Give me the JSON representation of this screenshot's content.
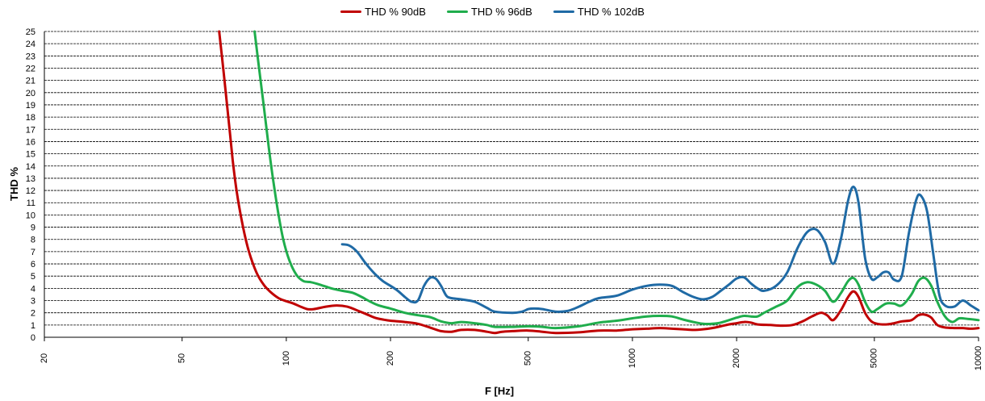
{
  "chart_data": {
    "type": "line",
    "xlabel": "F [Hz]",
    "ylabel": "THD %",
    "xscale": "log",
    "xlim": [
      20,
      10000
    ],
    "ylim": [
      0,
      25
    ],
    "grid": true,
    "legend_position": "top-center",
    "x_ticks": [
      {
        "value": 20,
        "label": "20"
      },
      {
        "value": 50,
        "label": "50"
      },
      {
        "value": 100,
        "label": "100"
      },
      {
        "value": 200,
        "label": "200"
      },
      {
        "value": 500,
        "label": "500"
      },
      {
        "value": 1000,
        "label": "1000"
      },
      {
        "value": 2000,
        "label": "2000"
      },
      {
        "value": 5000,
        "label": "5000"
      },
      {
        "value": 10000,
        "label": "10000"
      }
    ],
    "y_ticks": [
      0,
      1,
      2,
      3,
      4,
      5,
      6,
      7,
      8,
      9,
      10,
      11,
      12,
      13,
      14,
      15,
      16,
      17,
      18,
      19,
      20,
      21,
      22,
      23,
      24,
      25
    ],
    "series": [
      {
        "name": "THD % 90dB",
        "color": "#c00000",
        "points": [
          [
            64,
            25
          ],
          [
            66,
            21.5
          ],
          [
            68,
            18
          ],
          [
            70,
            14.5
          ],
          [
            72,
            11.8
          ],
          [
            75,
            9
          ],
          [
            78,
            7
          ],
          [
            82,
            5.3
          ],
          [
            86,
            4.3
          ],
          [
            90,
            3.7
          ],
          [
            95,
            3.2
          ],
          [
            100,
            2.95
          ],
          [
            105,
            2.75
          ],
          [
            110,
            2.5
          ],
          [
            115,
            2.3
          ],
          [
            120,
            2.3
          ],
          [
            130,
            2.5
          ],
          [
            140,
            2.6
          ],
          [
            150,
            2.5
          ],
          [
            160,
            2.2
          ],
          [
            170,
            1.9
          ],
          [
            180,
            1.6
          ],
          [
            190,
            1.45
          ],
          [
            200,
            1.35
          ],
          [
            220,
            1.25
          ],
          [
            240,
            1.1
          ],
          [
            260,
            0.8
          ],
          [
            280,
            0.5
          ],
          [
            300,
            0.45
          ],
          [
            320,
            0.6
          ],
          [
            350,
            0.6
          ],
          [
            380,
            0.45
          ],
          [
            400,
            0.35
          ],
          [
            420,
            0.45
          ],
          [
            450,
            0.5
          ],
          [
            500,
            0.55
          ],
          [
            550,
            0.45
          ],
          [
            600,
            0.35
          ],
          [
            700,
            0.4
          ],
          [
            800,
            0.55
          ],
          [
            900,
            0.55
          ],
          [
            1000,
            0.65
          ],
          [
            1100,
            0.7
          ],
          [
            1200,
            0.75
          ],
          [
            1300,
            0.7
          ],
          [
            1400,
            0.65
          ],
          [
            1500,
            0.6
          ],
          [
            1600,
            0.65
          ],
          [
            1700,
            0.75
          ],
          [
            1800,
            0.9
          ],
          [
            1900,
            1.05
          ],
          [
            2000,
            1.15
          ],
          [
            2100,
            1.25
          ],
          [
            2200,
            1.2
          ],
          [
            2300,
            1.05
          ],
          [
            2500,
            1.0
          ],
          [
            2700,
            0.95
          ],
          [
            2900,
            1.0
          ],
          [
            3100,
            1.3
          ],
          [
            3300,
            1.7
          ],
          [
            3500,
            2.0
          ],
          [
            3650,
            1.8
          ],
          [
            3800,
            1.4
          ],
          [
            4000,
            2.2
          ],
          [
            4200,
            3.3
          ],
          [
            4350,
            3.75
          ],
          [
            4500,
            3.3
          ],
          [
            4700,
            2.0
          ],
          [
            4900,
            1.3
          ],
          [
            5100,
            1.1
          ],
          [
            5400,
            1.05
          ],
          [
            5700,
            1.15
          ],
          [
            6000,
            1.3
          ],
          [
            6400,
            1.4
          ],
          [
            6700,
            1.8
          ],
          [
            7000,
            1.85
          ],
          [
            7300,
            1.6
          ],
          [
            7600,
            1.0
          ],
          [
            8000,
            0.8
          ],
          [
            8500,
            0.75
          ],
          [
            9000,
            0.75
          ],
          [
            9500,
            0.7
          ],
          [
            10000,
            0.75
          ]
        ]
      },
      {
        "name": "THD % 96dB",
        "color": "#1fad4c",
        "points": [
          [
            81,
            25
          ],
          [
            83,
            22.5
          ],
          [
            86,
            19
          ],
          [
            89,
            15.5
          ],
          [
            92,
            12.5
          ],
          [
            95,
            10
          ],
          [
            98,
            8
          ],
          [
            102,
            6.3
          ],
          [
            107,
            5.1
          ],
          [
            112,
            4.6
          ],
          [
            118,
            4.5
          ],
          [
            125,
            4.3
          ],
          [
            135,
            4.0
          ],
          [
            145,
            3.8
          ],
          [
            155,
            3.65
          ],
          [
            165,
            3.3
          ],
          [
            175,
            2.9
          ],
          [
            185,
            2.6
          ],
          [
            200,
            2.35
          ],
          [
            220,
            2.0
          ],
          [
            240,
            1.8
          ],
          [
            260,
            1.65
          ],
          [
            280,
            1.3
          ],
          [
            300,
            1.15
          ],
          [
            320,
            1.25
          ],
          [
            350,
            1.15
          ],
          [
            380,
            1.0
          ],
          [
            400,
            0.85
          ],
          [
            450,
            0.85
          ],
          [
            500,
            0.9
          ],
          [
            550,
            0.85
          ],
          [
            600,
            0.75
          ],
          [
            700,
            0.9
          ],
          [
            800,
            1.2
          ],
          [
            900,
            1.35
          ],
          [
            1000,
            1.55
          ],
          [
            1100,
            1.7
          ],
          [
            1200,
            1.75
          ],
          [
            1300,
            1.7
          ],
          [
            1400,
            1.45
          ],
          [
            1500,
            1.25
          ],
          [
            1600,
            1.1
          ],
          [
            1700,
            1.1
          ],
          [
            1800,
            1.2
          ],
          [
            1900,
            1.4
          ],
          [
            2000,
            1.6
          ],
          [
            2100,
            1.75
          ],
          [
            2200,
            1.7
          ],
          [
            2300,
            1.7
          ],
          [
            2400,
            2.0
          ],
          [
            2600,
            2.5
          ],
          [
            2800,
            3.0
          ],
          [
            3000,
            4.1
          ],
          [
            3200,
            4.5
          ],
          [
            3400,
            4.3
          ],
          [
            3600,
            3.8
          ],
          [
            3800,
            2.9
          ],
          [
            4000,
            3.6
          ],
          [
            4200,
            4.6
          ],
          [
            4350,
            4.85
          ],
          [
            4500,
            4.3
          ],
          [
            4700,
            2.9
          ],
          [
            4900,
            2.1
          ],
          [
            5100,
            2.3
          ],
          [
            5400,
            2.75
          ],
          [
            5700,
            2.75
          ],
          [
            6000,
            2.6
          ],
          [
            6400,
            3.5
          ],
          [
            6700,
            4.6
          ],
          [
            7000,
            4.85
          ],
          [
            7300,
            4.2
          ],
          [
            7600,
            2.9
          ],
          [
            8000,
            1.7
          ],
          [
            8400,
            1.25
          ],
          [
            8800,
            1.55
          ],
          [
            9300,
            1.5
          ],
          [
            10000,
            1.4
          ]
        ]
      },
      {
        "name": "THD % 102dB",
        "color": "#1f6aa5",
        "points": [
          [
            145,
            7.6
          ],
          [
            152,
            7.5
          ],
          [
            160,
            7.0
          ],
          [
            170,
            6.0
          ],
          [
            180,
            5.2
          ],
          [
            190,
            4.6
          ],
          [
            200,
            4.2
          ],
          [
            210,
            3.8
          ],
          [
            220,
            3.3
          ],
          [
            230,
            2.9
          ],
          [
            240,
            3.0
          ],
          [
            250,
            4.2
          ],
          [
            260,
            4.85
          ],
          [
            270,
            4.8
          ],
          [
            280,
            4.2
          ],
          [
            290,
            3.4
          ],
          [
            300,
            3.2
          ],
          [
            320,
            3.1
          ],
          [
            350,
            2.9
          ],
          [
            380,
            2.4
          ],
          [
            400,
            2.1
          ],
          [
            450,
            2.0
          ],
          [
            480,
            2.1
          ],
          [
            500,
            2.3
          ],
          [
            520,
            2.35
          ],
          [
            550,
            2.3
          ],
          [
            600,
            2.1
          ],
          [
            650,
            2.15
          ],
          [
            700,
            2.5
          ],
          [
            750,
            2.9
          ],
          [
            800,
            3.2
          ],
          [
            900,
            3.4
          ],
          [
            1000,
            3.9
          ],
          [
            1100,
            4.2
          ],
          [
            1200,
            4.3
          ],
          [
            1300,
            4.2
          ],
          [
            1400,
            3.7
          ],
          [
            1500,
            3.3
          ],
          [
            1600,
            3.1
          ],
          [
            1700,
            3.3
          ],
          [
            1800,
            3.8
          ],
          [
            1900,
            4.3
          ],
          [
            2000,
            4.8
          ],
          [
            2100,
            4.9
          ],
          [
            2200,
            4.4
          ],
          [
            2300,
            4.0
          ],
          [
            2400,
            3.8
          ],
          [
            2600,
            4.2
          ],
          [
            2800,
            5.3
          ],
          [
            3000,
            7.3
          ],
          [
            3200,
            8.6
          ],
          [
            3400,
            8.8
          ],
          [
            3600,
            7.8
          ],
          [
            3800,
            6.0
          ],
          [
            4000,
            8.0
          ],
          [
            4200,
            11.2
          ],
          [
            4350,
            12.3
          ],
          [
            4500,
            11.0
          ],
          [
            4700,
            6.5
          ],
          [
            4900,
            4.8
          ],
          [
            5100,
            4.9
          ],
          [
            5300,
            5.3
          ],
          [
            5500,
            5.3
          ],
          [
            5700,
            4.7
          ],
          [
            6000,
            5.0
          ],
          [
            6300,
            8.6
          ],
          [
            6600,
            11.2
          ],
          [
            6800,
            11.6
          ],
          [
            7100,
            10.3
          ],
          [
            7400,
            6.8
          ],
          [
            7700,
            3.5
          ],
          [
            8000,
            2.6
          ],
          [
            8500,
            2.5
          ],
          [
            9000,
            3.0
          ],
          [
            9500,
            2.6
          ],
          [
            10000,
            2.2
          ]
        ]
      }
    ]
  }
}
